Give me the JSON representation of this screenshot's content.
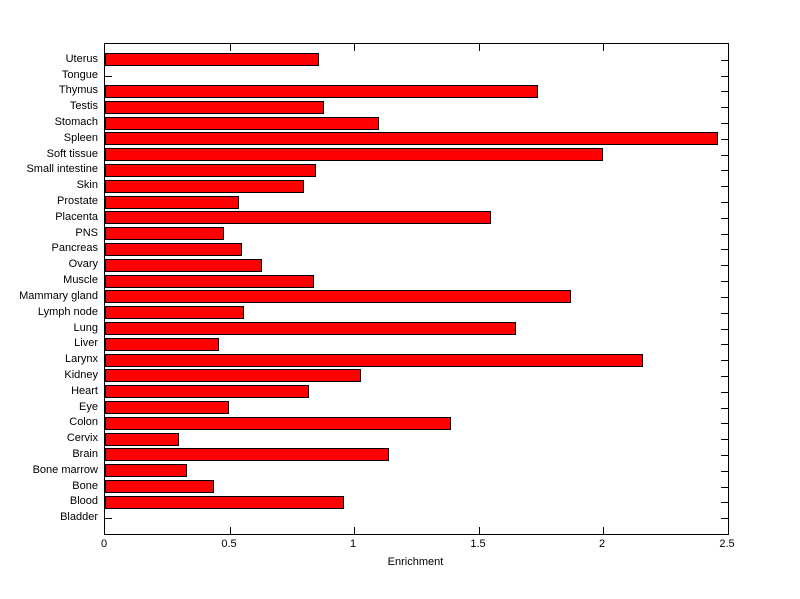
{
  "figure": {
    "background_color": "#FFFFFF",
    "bar_fill_color": "#FF0000",
    "bar_edge_color": "#000000",
    "axis_color": "#000000",
    "text_color": "#000000"
  },
  "chart_data": {
    "type": "bar",
    "orientation": "horizontal",
    "title": "",
    "xlabel": "Enrichment",
    "ylabel": "",
    "xlim": [
      0,
      2.5
    ],
    "xticks": [
      0,
      0.5,
      1,
      1.5,
      2,
      2.5
    ],
    "xtick_labels": [
      "0",
      "0.5",
      "1",
      "1.5",
      "2",
      "2.5"
    ],
    "grid": false,
    "legend": false,
    "categories": [
      "Uterus",
      "Tongue",
      "Thymus",
      "Testis",
      "Stomach",
      "Spleen",
      "Soft tissue",
      "Small intestine",
      "Skin",
      "Prostate",
      "Placenta",
      "PNS",
      "Pancreas",
      "Ovary",
      "Muscle",
      "Mammary gland",
      "Lymph node",
      "Lung",
      "Liver",
      "Larynx",
      "Kidney",
      "Heart",
      "Eye",
      "Colon",
      "Cervix",
      "Brain",
      "Bone marrow",
      "Bone",
      "Blood",
      "Bladder"
    ],
    "values": [
      0.85,
      0,
      1.73,
      0.87,
      1.09,
      2.45,
      1.99,
      0.84,
      0.79,
      0.53,
      1.54,
      0.47,
      0.54,
      0.62,
      0.83,
      1.86,
      0.55,
      1.64,
      0.45,
      2.15,
      1.02,
      0.81,
      0.49,
      1.38,
      0.29,
      1.13,
      0.32,
      0.43,
      0.95,
      0
    ]
  }
}
